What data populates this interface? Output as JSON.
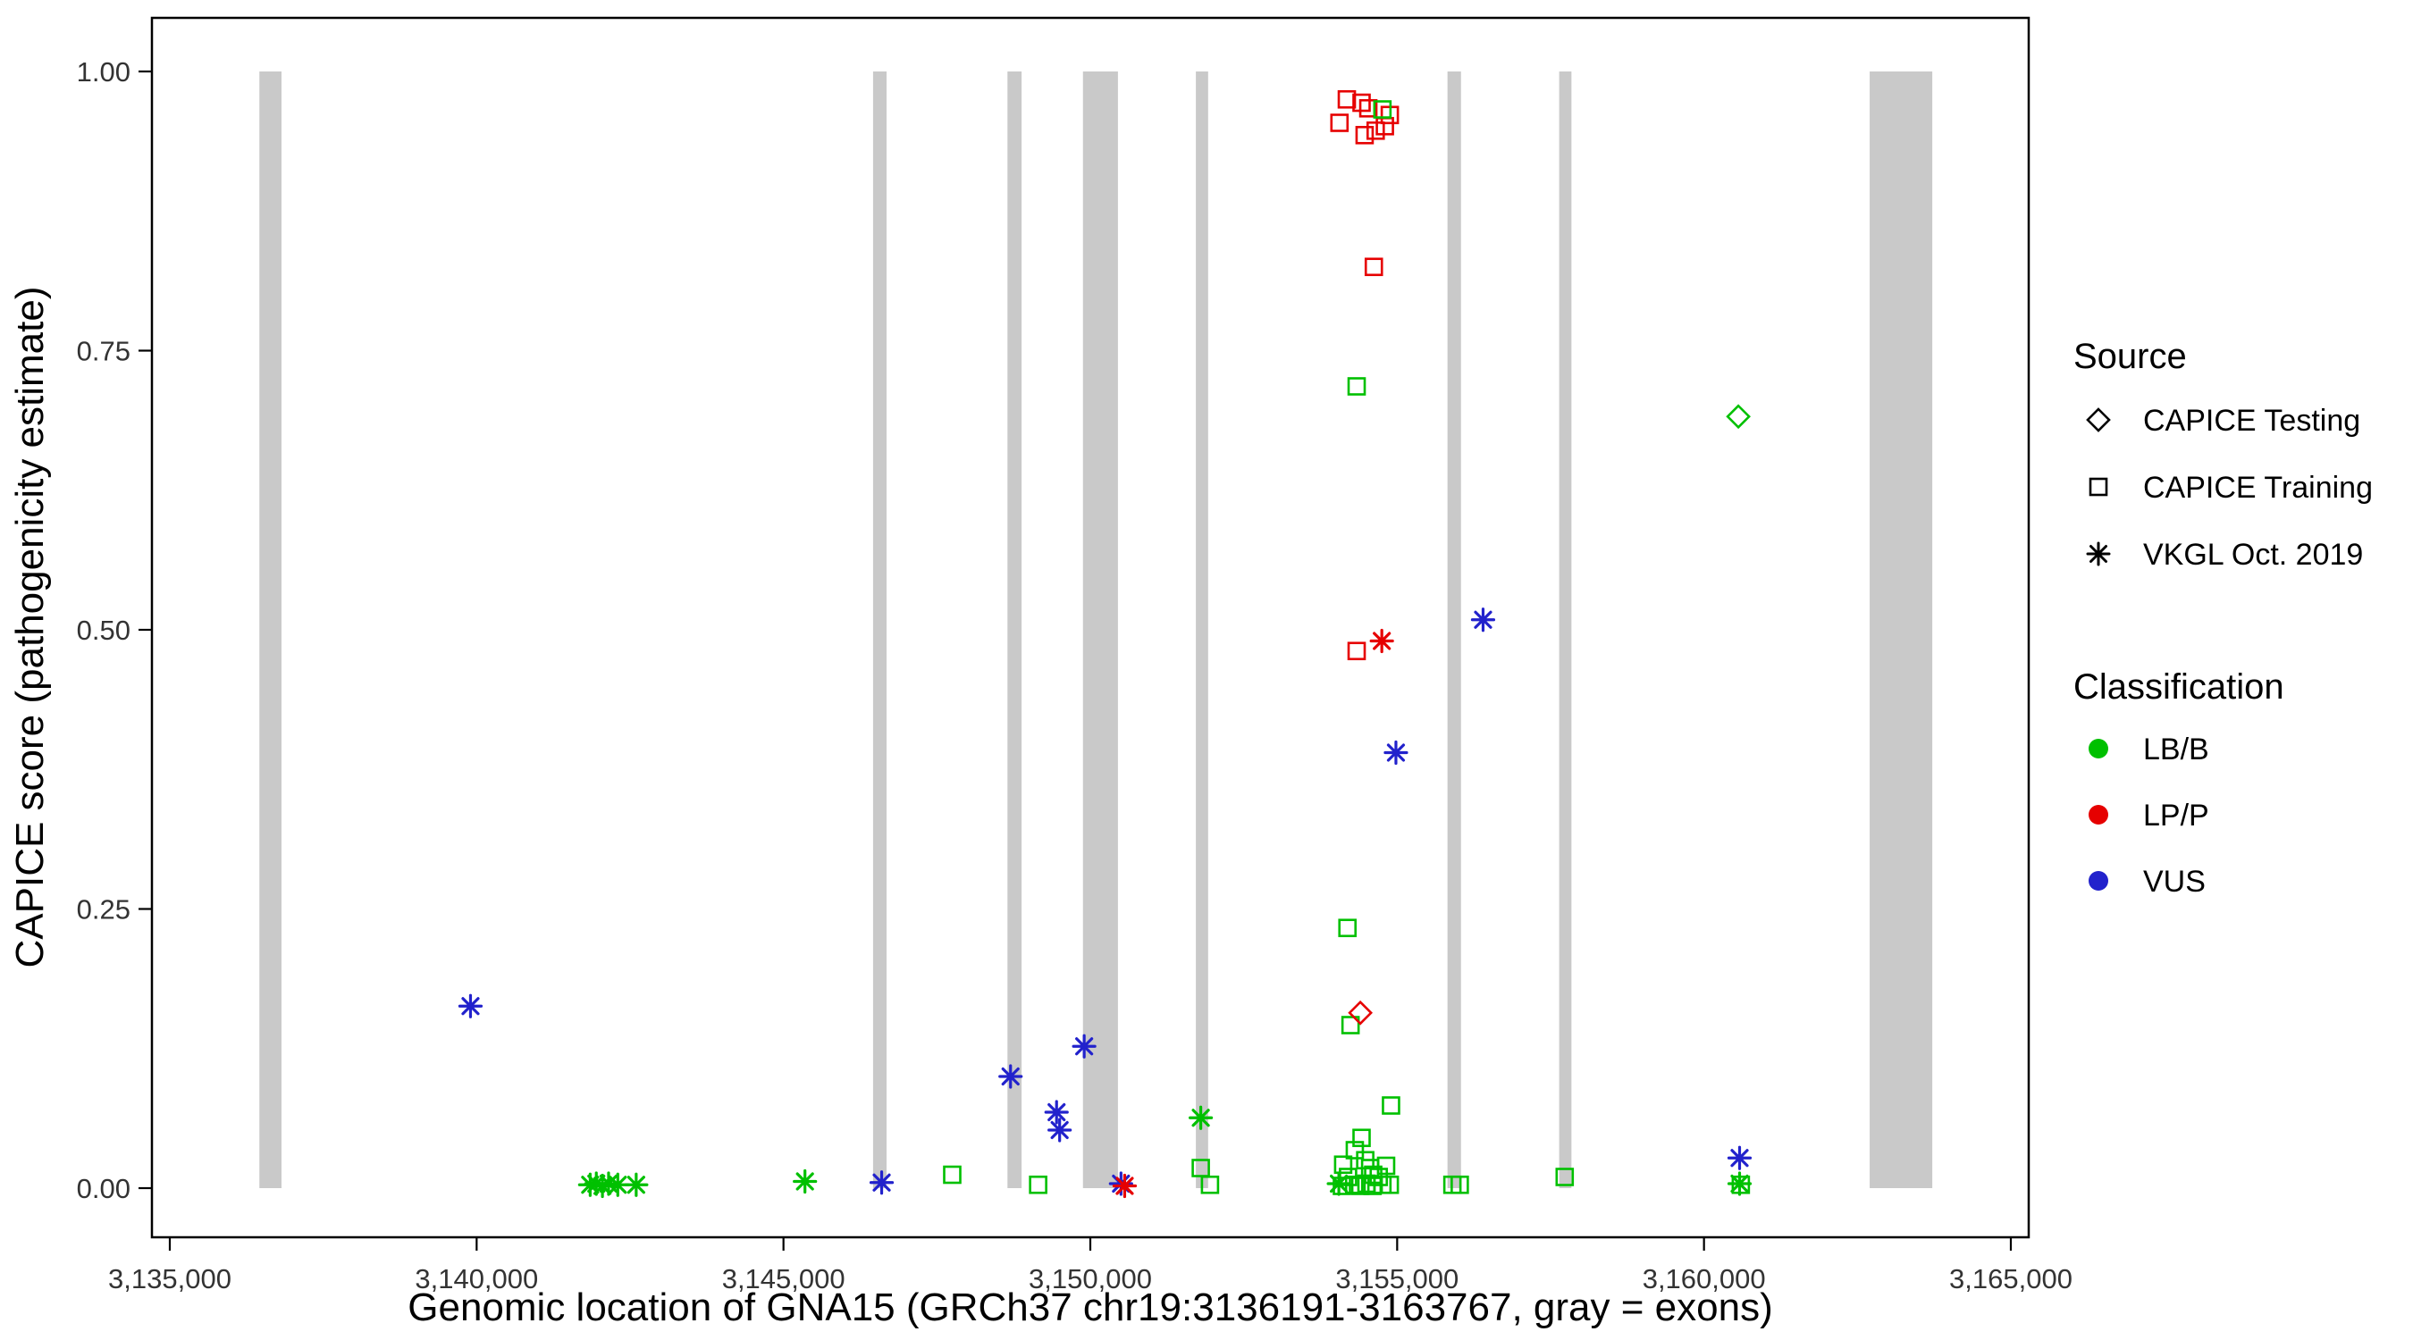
{
  "chart_data": {
    "type": "scatter",
    "title": "",
    "xlabel": "Genomic location of GNA15 (GRCh37 chr19:3136191-3163767, gray = exons)",
    "ylabel": "CAPICE score (pathogenicity estimate)",
    "xlim": [
      3135000,
      3165000
    ],
    "ylim": [
      0,
      1
    ],
    "grid": false,
    "x_ticks": [
      {
        "value": 3135000,
        "label": "3,135,000"
      },
      {
        "value": 3140000,
        "label": "3,140,000"
      },
      {
        "value": 3145000,
        "label": "3,145,000"
      },
      {
        "value": 3150000,
        "label": "3,150,000"
      },
      {
        "value": 3155000,
        "label": "3,155,000"
      },
      {
        "value": 3160000,
        "label": "3,160,000"
      },
      {
        "value": 3165000,
        "label": "3,165,000"
      }
    ],
    "y_ticks": [
      {
        "value": 0.0,
        "label": "0.00"
      },
      {
        "value": 0.25,
        "label": "0.25"
      },
      {
        "value": 0.5,
        "label": "0.50"
      },
      {
        "value": 0.75,
        "label": "0.75"
      },
      {
        "value": 1.0,
        "label": "1.00"
      }
    ],
    "exon_color": "#C9C9C9",
    "exons": [
      [
        3136460,
        3136820
      ],
      [
        3146460,
        3146680
      ],
      [
        3148650,
        3148880
      ],
      [
        3149880,
        3150450
      ],
      [
        3151720,
        3151920
      ],
      [
        3155820,
        3156040
      ],
      [
        3157640,
        3157840
      ],
      [
        3162700,
        3163720
      ]
    ],
    "class_colors": {
      "LB/B": "#00C000",
      "LP/P": "#E60000",
      "VUS": "#2222CC"
    },
    "marker_by_source": {
      "testing": "diamond",
      "training": "square",
      "vkgl": "asterisk"
    },
    "points": [
      {
        "x": 3139900,
        "y": 0.163,
        "source": "vkgl",
        "cls": "VUS"
      },
      {
        "x": 3141850,
        "y": 0.003,
        "source": "vkgl",
        "cls": "LB/B"
      },
      {
        "x": 3141950,
        "y": 0.004,
        "source": "vkgl",
        "cls": "LB/B"
      },
      {
        "x": 3142050,
        "y": 0.002,
        "source": "vkgl",
        "cls": "LB/B"
      },
      {
        "x": 3142150,
        "y": 0.004,
        "source": "vkgl",
        "cls": "LB/B"
      },
      {
        "x": 3142300,
        "y": 0.003,
        "source": "vkgl",
        "cls": "LB/B"
      },
      {
        "x": 3142600,
        "y": 0.003,
        "source": "vkgl",
        "cls": "LB/B"
      },
      {
        "x": 3145350,
        "y": 0.006,
        "source": "vkgl",
        "cls": "LB/B"
      },
      {
        "x": 3146600,
        "y": 0.005,
        "source": "vkgl",
        "cls": "VUS"
      },
      {
        "x": 3148700,
        "y": 0.1,
        "source": "vkgl",
        "cls": "VUS"
      },
      {
        "x": 3149450,
        "y": 0.068,
        "source": "vkgl",
        "cls": "VUS"
      },
      {
        "x": 3149500,
        "y": 0.052,
        "source": "vkgl",
        "cls": "VUS"
      },
      {
        "x": 3149900,
        "y": 0.127,
        "source": "vkgl",
        "cls": "VUS"
      },
      {
        "x": 3150500,
        "y": 0.004,
        "source": "vkgl",
        "cls": "VUS"
      },
      {
        "x": 3150560,
        "y": 0.002,
        "source": "vkgl",
        "cls": "LP/P"
      },
      {
        "x": 3151800,
        "y": 0.063,
        "source": "vkgl",
        "cls": "LB/B"
      },
      {
        "x": 3154050,
        "y": 0.004,
        "source": "vkgl",
        "cls": "LB/B"
      },
      {
        "x": 3154750,
        "y": 0.49,
        "source": "vkgl",
        "cls": "LP/P"
      },
      {
        "x": 3154980,
        "y": 0.39,
        "source": "vkgl",
        "cls": "VUS"
      },
      {
        "x": 3156400,
        "y": 0.509,
        "source": "vkgl",
        "cls": "VUS"
      },
      {
        "x": 3160580,
        "y": 0.027,
        "source": "vkgl",
        "cls": "VUS"
      },
      {
        "x": 3160580,
        "y": 0.004,
        "source": "vkgl",
        "cls": "LB/B"
      },
      {
        "x": 3154180,
        "y": 0.975,
        "source": "training",
        "cls": "LP/P"
      },
      {
        "x": 3154060,
        "y": 0.954,
        "source": "training",
        "cls": "LP/P"
      },
      {
        "x": 3154420,
        "y": 0.972,
        "source": "training",
        "cls": "LP/P"
      },
      {
        "x": 3154530,
        "y": 0.967,
        "source": "training",
        "cls": "LP/P"
      },
      {
        "x": 3154470,
        "y": 0.943,
        "source": "training",
        "cls": "LP/P"
      },
      {
        "x": 3154650,
        "y": 0.947,
        "source": "training",
        "cls": "LP/P"
      },
      {
        "x": 3154800,
        "y": 0.951,
        "source": "training",
        "cls": "LP/P"
      },
      {
        "x": 3154880,
        "y": 0.961,
        "source": "training",
        "cls": "LP/P"
      },
      {
        "x": 3154760,
        "y": 0.966,
        "source": "training",
        "cls": "LB/B"
      },
      {
        "x": 3154620,
        "y": 0.825,
        "source": "training",
        "cls": "LP/P"
      },
      {
        "x": 3154340,
        "y": 0.718,
        "source": "training",
        "cls": "LB/B"
      },
      {
        "x": 3154340,
        "y": 0.481,
        "source": "training",
        "cls": "LP/P"
      },
      {
        "x": 3154190,
        "y": 0.233,
        "source": "training",
        "cls": "LB/B"
      },
      {
        "x": 3154240,
        "y": 0.146,
        "source": "training",
        "cls": "LB/B"
      },
      {
        "x": 3154900,
        "y": 0.074,
        "source": "training",
        "cls": "LB/B"
      },
      {
        "x": 3154420,
        "y": 0.045,
        "source": "training",
        "cls": "LB/B"
      },
      {
        "x": 3154310,
        "y": 0.034,
        "source": "training",
        "cls": "LB/B"
      },
      {
        "x": 3154120,
        "y": 0.021,
        "source": "training",
        "cls": "LB/B"
      },
      {
        "x": 3154480,
        "y": 0.025,
        "source": "training",
        "cls": "LB/B"
      },
      {
        "x": 3154560,
        "y": 0.018,
        "source": "training",
        "cls": "LB/B"
      },
      {
        "x": 3154610,
        "y": 0.012,
        "source": "training",
        "cls": "LB/B"
      },
      {
        "x": 3154200,
        "y": 0.01,
        "source": "training",
        "cls": "LB/B"
      },
      {
        "x": 3154300,
        "y": 0.003,
        "source": "training",
        "cls": "LB/B"
      },
      {
        "x": 3154400,
        "y": 0.002,
        "source": "training",
        "cls": "LB/B"
      },
      {
        "x": 3154500,
        "y": 0.004,
        "source": "training",
        "cls": "LB/B"
      },
      {
        "x": 3154600,
        "y": 0.002,
        "source": "training",
        "cls": "LB/B"
      },
      {
        "x": 3154700,
        "y": 0.01,
        "source": "training",
        "cls": "LB/B"
      },
      {
        "x": 3154760,
        "y": 0.003,
        "source": "training",
        "cls": "LB/B"
      },
      {
        "x": 3154820,
        "y": 0.02,
        "source": "training",
        "cls": "LB/B"
      },
      {
        "x": 3154880,
        "y": 0.003,
        "source": "training",
        "cls": "LB/B"
      },
      {
        "x": 3154100,
        "y": 0.002,
        "source": "training",
        "cls": "LB/B"
      },
      {
        "x": 3147750,
        "y": 0.012,
        "source": "training",
        "cls": "LB/B"
      },
      {
        "x": 3149150,
        "y": 0.003,
        "source": "training",
        "cls": "LB/B"
      },
      {
        "x": 3151800,
        "y": 0.018,
        "source": "training",
        "cls": "LB/B"
      },
      {
        "x": 3151950,
        "y": 0.003,
        "source": "training",
        "cls": "LB/B"
      },
      {
        "x": 3155900,
        "y": 0.003,
        "source": "training",
        "cls": "LB/B"
      },
      {
        "x": 3156020,
        "y": 0.003,
        "source": "training",
        "cls": "LB/B"
      },
      {
        "x": 3157730,
        "y": 0.01,
        "source": "training",
        "cls": "LB/B"
      },
      {
        "x": 3160600,
        "y": 0.003,
        "source": "training",
        "cls": "LB/B"
      },
      {
        "x": 3160560,
        "y": 0.691,
        "source": "testing",
        "cls": "LB/B"
      },
      {
        "x": 3154400,
        "y": 0.157,
        "source": "testing",
        "cls": "LP/P"
      }
    ]
  },
  "legend": {
    "source": {
      "title": "Source",
      "items": [
        {
          "label": "CAPICE Testing",
          "marker": "diamond"
        },
        {
          "label": "CAPICE Training",
          "marker": "square"
        },
        {
          "label": "VKGL Oct. 2019",
          "marker": "asterisk"
        }
      ]
    },
    "classification": {
      "title": "Classification",
      "items": [
        {
          "label": "LB/B",
          "color": "#00C000"
        },
        {
          "label": "LP/P",
          "color": "#E60000"
        },
        {
          "label": "VUS",
          "color": "#2222CC"
        }
      ]
    }
  }
}
